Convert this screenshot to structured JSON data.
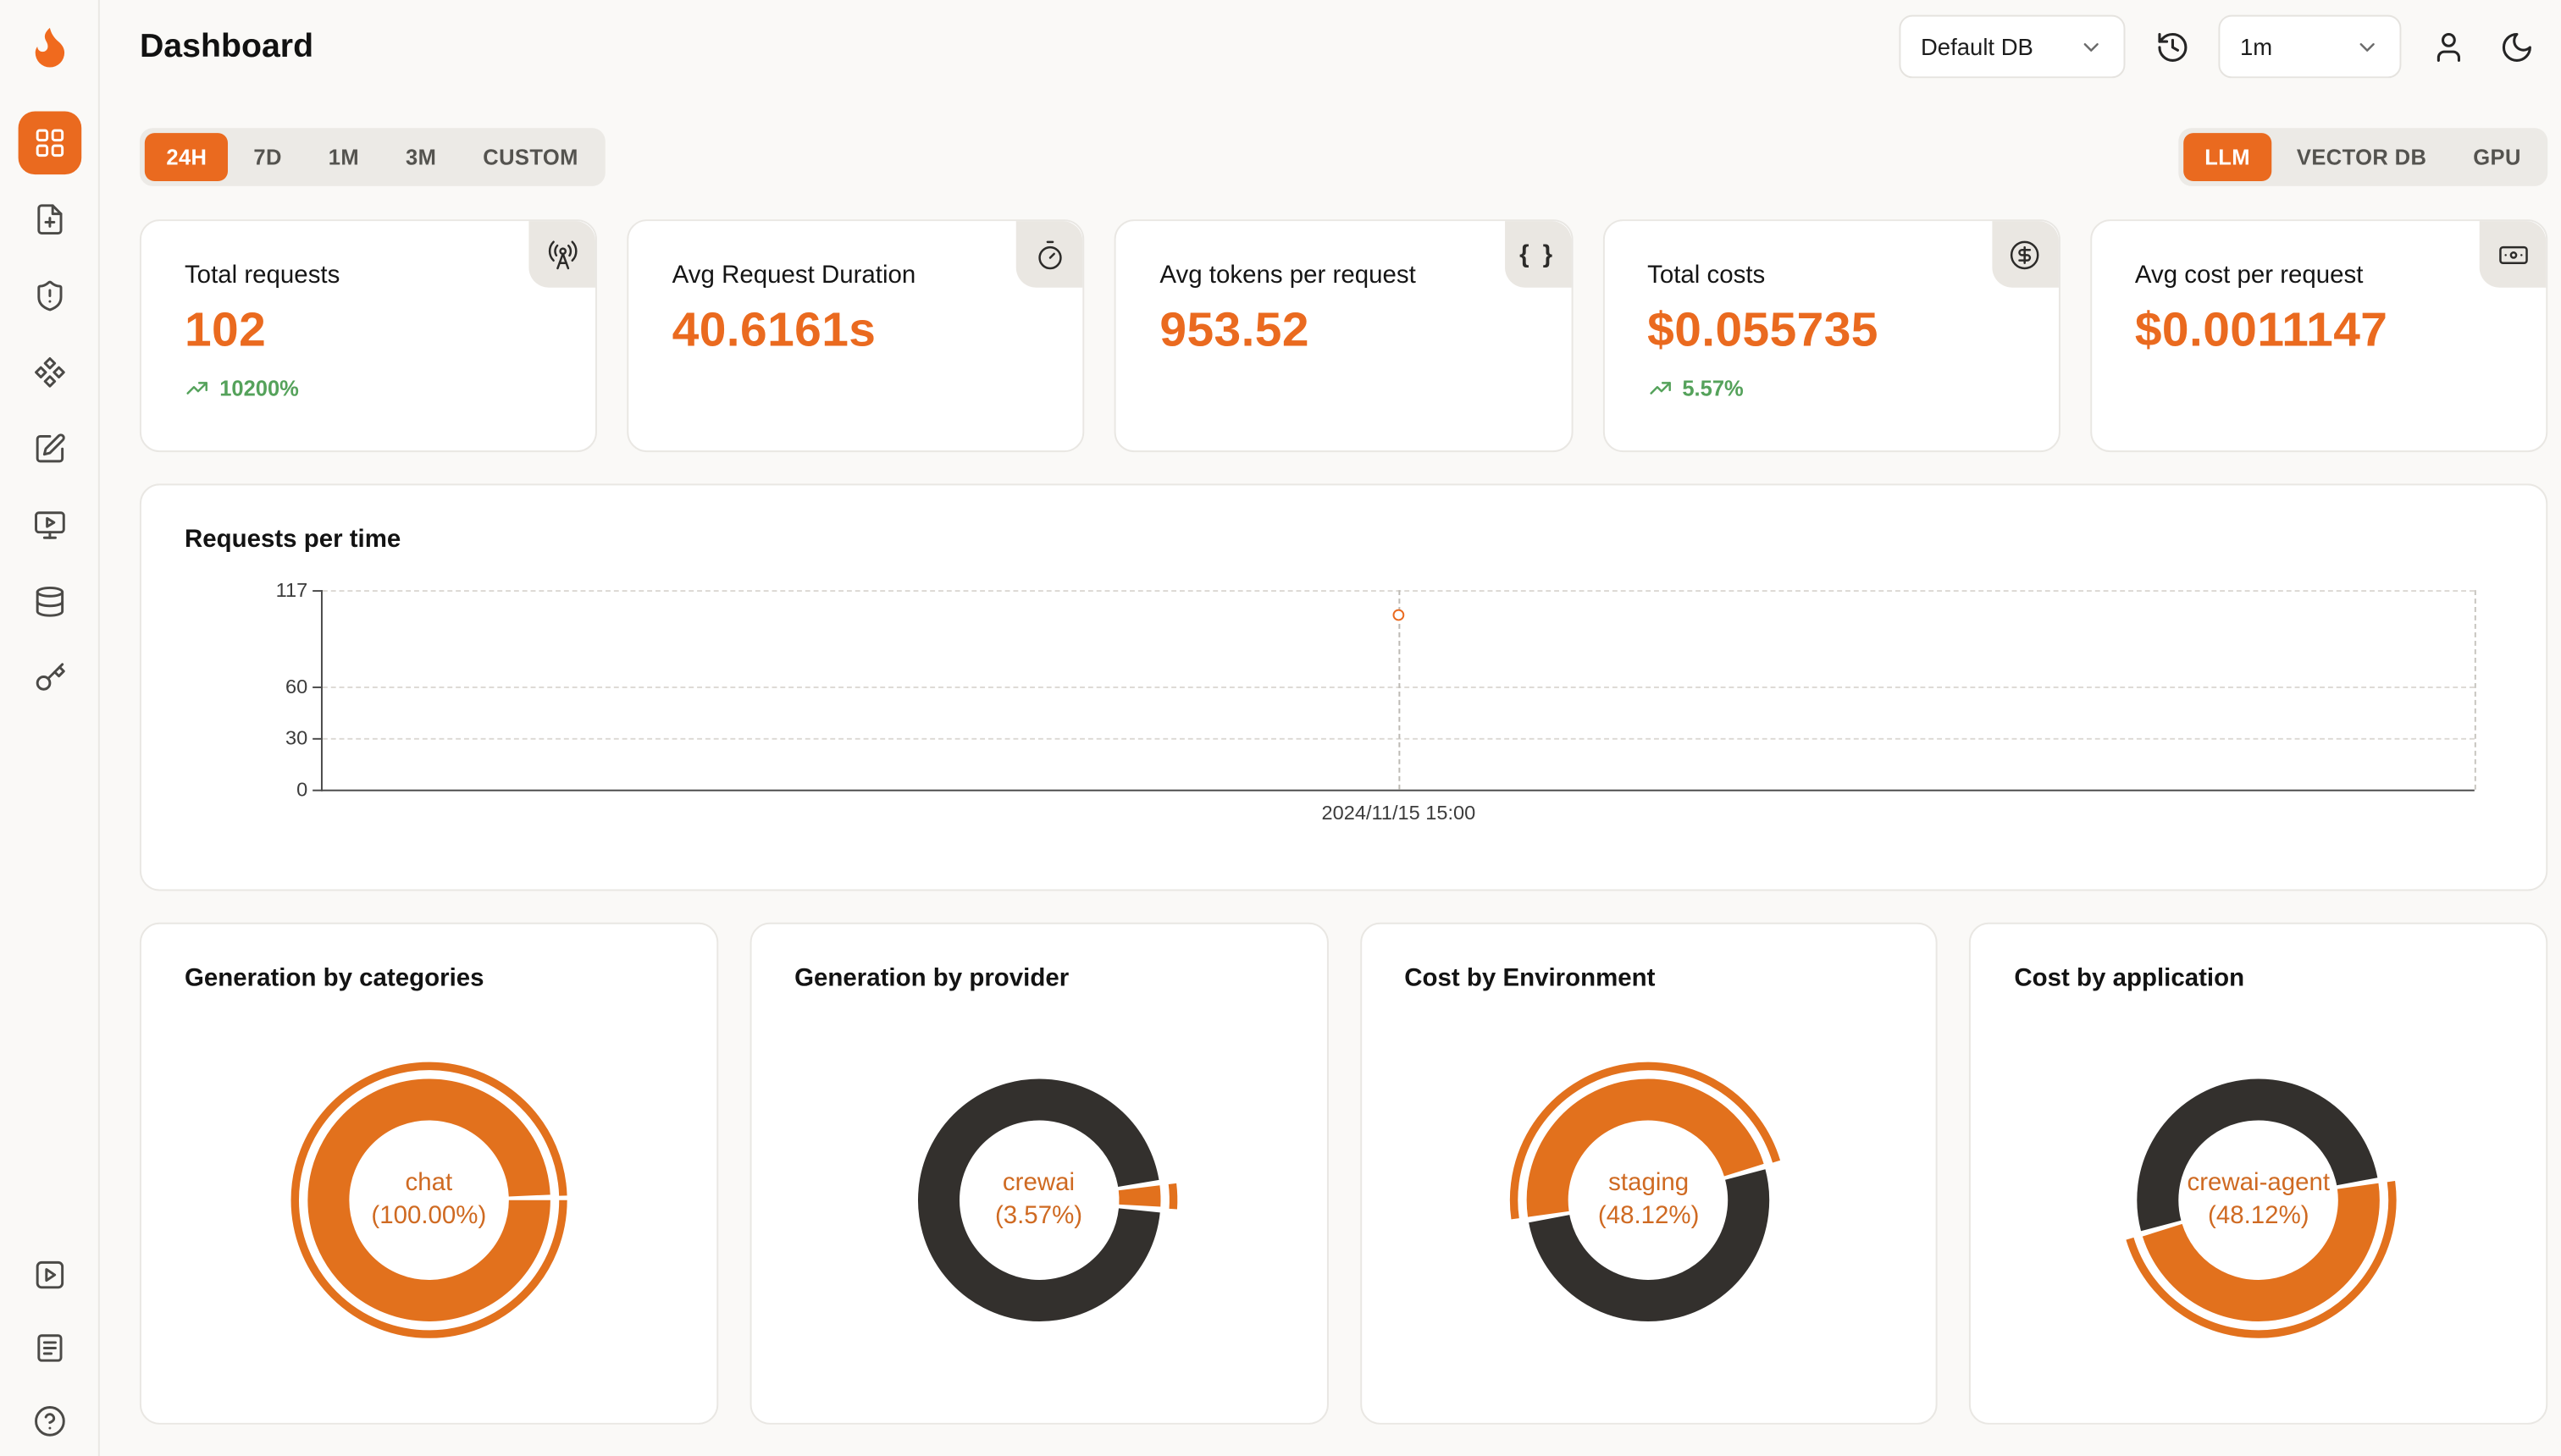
{
  "colors": {
    "accent": "#EA6A1F",
    "donut_orange": "#E2711D",
    "donut_dark": "#33302D",
    "green": "#55A25B"
  },
  "header": {
    "title": "Dashboard",
    "database_select": {
      "value": "Default DB"
    },
    "interval_select": {
      "value": "1m"
    }
  },
  "sidebar": {
    "items": [
      {
        "name": "dashboard",
        "active": true
      },
      {
        "name": "requests",
        "active": false
      },
      {
        "name": "exceptions",
        "active": false
      },
      {
        "name": "prompt-hub",
        "active": false
      },
      {
        "name": "evaluations",
        "active": false
      },
      {
        "name": "openground",
        "active": false
      },
      {
        "name": "databases",
        "active": false
      },
      {
        "name": "api-keys",
        "active": false
      }
    ],
    "bottom_items": [
      {
        "name": "getting-started"
      },
      {
        "name": "documentation"
      },
      {
        "name": "support"
      }
    ]
  },
  "filters": {
    "time_ranges": [
      "24H",
      "7D",
      "1M",
      "3M",
      "CUSTOM"
    ],
    "active_time_range": "24H",
    "sources": [
      "LLM",
      "VECTOR DB",
      "GPU"
    ],
    "active_source": "LLM"
  },
  "stats": [
    {
      "label": "Total requests",
      "value": "102",
      "delta": "10200%",
      "icon": "radio-tower-icon"
    },
    {
      "label": "Avg Request Duration",
      "value": "40.6161s",
      "delta": null,
      "icon": "timer-icon"
    },
    {
      "label": "Avg tokens per request",
      "value": "953.52",
      "delta": null,
      "icon": "braces-icon"
    },
    {
      "label": "Total costs",
      "value": "$0.055735",
      "delta": "5.57%",
      "icon": "dollar-icon"
    },
    {
      "label": "Avg cost per request",
      "value": "$0.0011147",
      "delta": null,
      "icon": "banknote-icon"
    }
  ],
  "chart_data": [
    {
      "type": "line",
      "title": "Requests per time",
      "x": [
        "2024/11/15 15:00"
      ],
      "series": [
        {
          "name": "Requests",
          "values": [
            102
          ]
        }
      ],
      "ylim": [
        0,
        117
      ],
      "yticks": [
        0,
        30,
        60,
        117
      ],
      "grid": "dashed",
      "legend": "off",
      "marker": {
        "x_fraction": 0.5,
        "value": 102
      }
    },
    {
      "type": "pie",
      "title": "Generation by categories",
      "center_label": [
        "chat",
        "(100.00%)"
      ],
      "start_deg": 90,
      "slices": [
        {
          "name": "chat",
          "pct": 100.0,
          "color": "#E2711D"
        }
      ]
    },
    {
      "type": "pie",
      "title": "Generation by provider",
      "center_label": [
        "crewai",
        "(3.57%)"
      ],
      "start_deg": 83,
      "slices": [
        {
          "name": "crewai",
          "pct": 3.57,
          "color": "#E2711D"
        },
        {
          "name": "segment-2",
          "pct": 96.43,
          "color": "#33302D"
        }
      ]
    },
    {
      "type": "pie",
      "title": "Cost by Environment",
      "center_label": [
        "staging",
        "(48.12%)"
      ],
      "start_deg": 262,
      "slices": [
        {
          "name": "staging",
          "pct": 48.12,
          "color": "#E2711D"
        },
        {
          "name": "segment-2",
          "pct": 51.88,
          "color": "#33302D"
        }
      ]
    },
    {
      "type": "pie",
      "title": "Cost by application",
      "center_label": [
        "crewai-agent",
        "(48.12%)"
      ],
      "start_deg": 82,
      "slices": [
        {
          "name": "crewai-agent",
          "pct": 48.12,
          "color": "#E2711D"
        },
        {
          "name": "segment-2",
          "pct": 51.88,
          "color": "#33302D"
        }
      ]
    }
  ]
}
